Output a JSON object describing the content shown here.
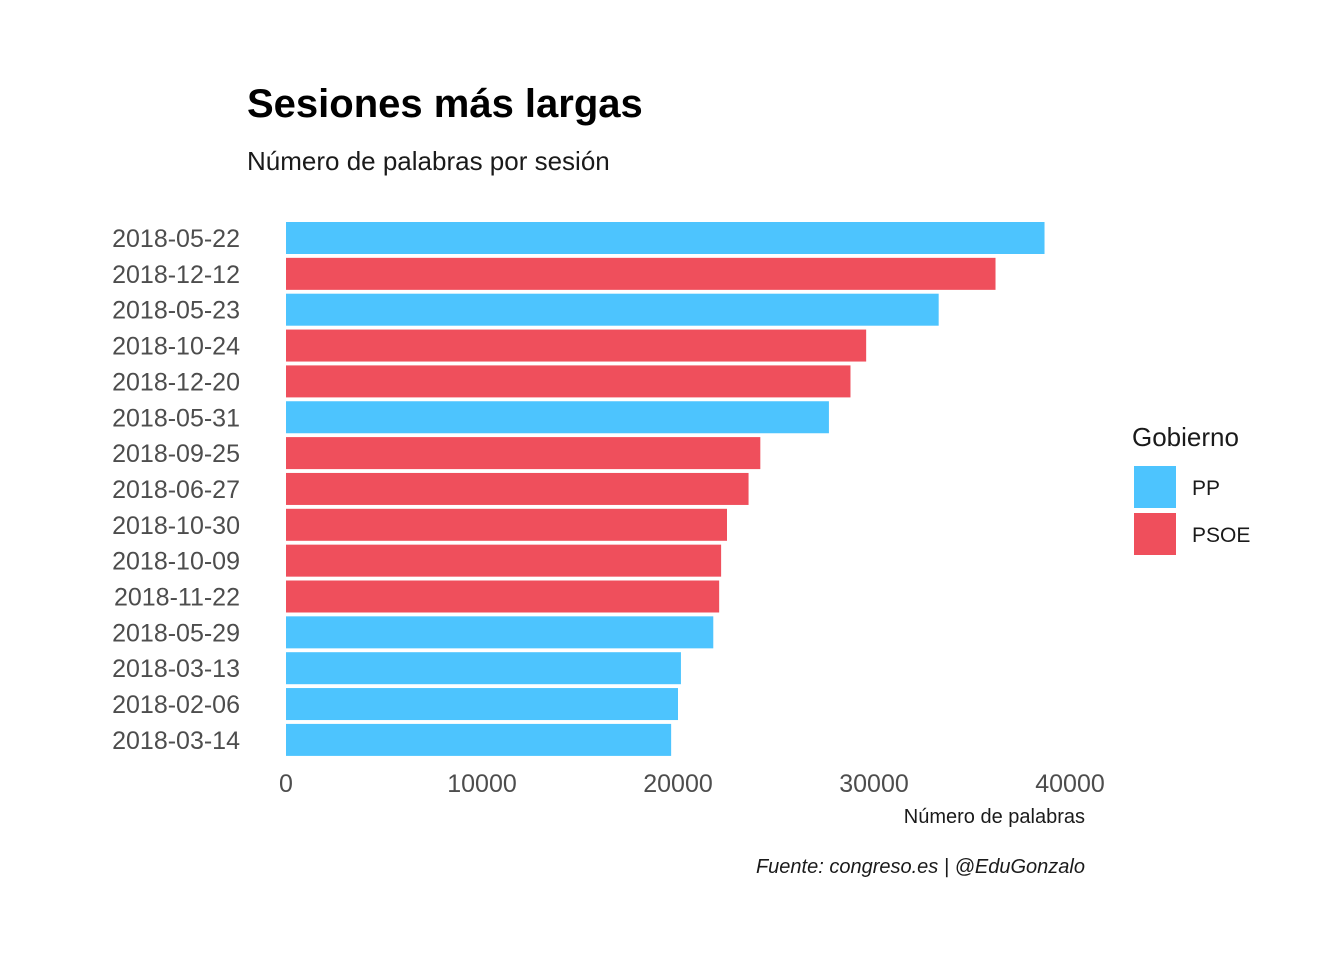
{
  "chart_data": {
    "type": "bar",
    "orientation": "horizontal",
    "title": "Sesiones más largas",
    "subtitle": "Número de palabras por sesión",
    "xlabel": "Número de palabras",
    "ylabel": "",
    "caption": "Fuente: congreso.es | @EduGonzalo",
    "xlim": [
      0,
      40000
    ],
    "xticks": [
      0,
      10000,
      20000,
      30000,
      40000
    ],
    "grid": false,
    "legend": {
      "title": "Gobierno",
      "position": "right",
      "entries": [
        {
          "name": "PP",
          "color": "#4DC4FE"
        },
        {
          "name": "PSOE",
          "color": "#EF4F5C"
        }
      ]
    },
    "bars": [
      {
        "category": "2018-05-22",
        "value": 38700,
        "group": "PP"
      },
      {
        "category": "2018-12-12",
        "value": 36200,
        "group": "PSOE"
      },
      {
        "category": "2018-05-23",
        "value": 33300,
        "group": "PP"
      },
      {
        "category": "2018-10-24",
        "value": 29600,
        "group": "PSOE"
      },
      {
        "category": "2018-12-20",
        "value": 28800,
        "group": "PSOE"
      },
      {
        "category": "2018-05-31",
        "value": 27700,
        "group": "PP"
      },
      {
        "category": "2018-09-25",
        "value": 24200,
        "group": "PSOE"
      },
      {
        "category": "2018-06-27",
        "value": 23600,
        "group": "PSOE"
      },
      {
        "category": "2018-10-30",
        "value": 22500,
        "group": "PSOE"
      },
      {
        "category": "2018-10-09",
        "value": 22200,
        "group": "PSOE"
      },
      {
        "category": "2018-11-22",
        "value": 22100,
        "group": "PSOE"
      },
      {
        "category": "2018-05-29",
        "value": 21800,
        "group": "PP"
      },
      {
        "category": "2018-03-13",
        "value": 20150,
        "group": "PP"
      },
      {
        "category": "2018-02-06",
        "value": 20000,
        "group": "PP"
      },
      {
        "category": "2018-03-14",
        "value": 19650,
        "group": "PP"
      }
    ]
  }
}
